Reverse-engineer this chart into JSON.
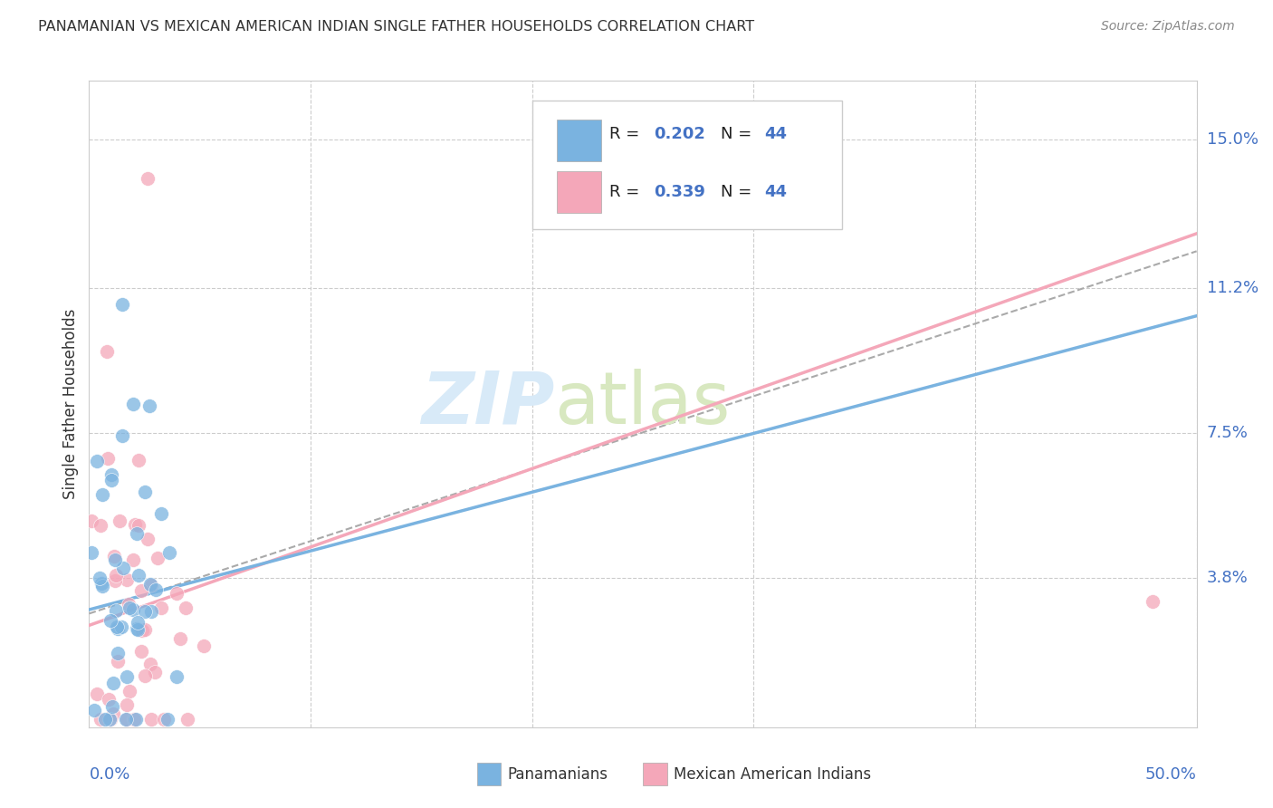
{
  "title": "PANAMANIAN VS MEXICAN AMERICAN INDIAN SINGLE FATHER HOUSEHOLDS CORRELATION CHART",
  "source": "Source: ZipAtlas.com",
  "ylabel": "Single Father Households",
  "ytick_labels": [
    "15.0%",
    "11.2%",
    "7.5%",
    "3.8%"
  ],
  "ytick_values": [
    0.15,
    0.112,
    0.075,
    0.038
  ],
  "xlim": [
    0.0,
    0.5
  ],
  "ylim": [
    0.0,
    0.165
  ],
  "color_panama": "#7ab3e0",
  "color_mexico": "#f4a7b9",
  "color_axis_label": "#4472c4",
  "pan_intercept": 0.03,
  "pan_slope": 0.15,
  "mex_intercept": 0.026,
  "mex_slope": 0.2,
  "dash_intercept": 0.029,
  "dash_slope": 0.185
}
